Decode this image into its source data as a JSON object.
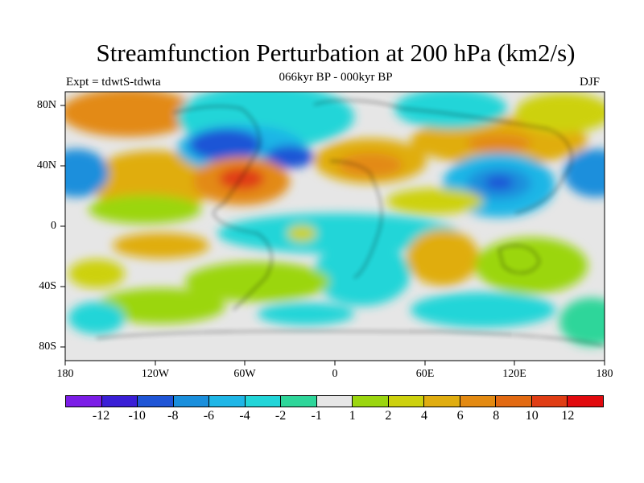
{
  "title": "Streamfunction Perturbation at 200 hPa (km2/s)",
  "subtitle": "066kyr BP - 000kyr BP",
  "experiment": "Expt = tdwtS-tdwta",
  "season": "DJF",
  "map_axes": {
    "lat_labels": [
      "80N",
      "40N",
      "0",
      "40S",
      "80S"
    ],
    "lon_labels": [
      "180",
      "120W",
      "60W",
      "0",
      "60E",
      "120E",
      "180"
    ]
  },
  "colorbar": {
    "colors": [
      "#7b1de6",
      "#3a1fd6",
      "#1f55d6",
      "#1a8fdc",
      "#1fb6e6",
      "#22d5d8",
      "#2ed69a",
      "#e6e6e6",
      "#9bd60f",
      "#cdd10e",
      "#e0ad10",
      "#e38a12",
      "#e26a12",
      "#e03d14",
      "#e10a0e"
    ],
    "labels": [
      "-12",
      "-10",
      "-8",
      "-6",
      "-4",
      "-2",
      "-1",
      "1",
      "2",
      "4",
      "6",
      "8",
      "10",
      "12"
    ]
  }
}
